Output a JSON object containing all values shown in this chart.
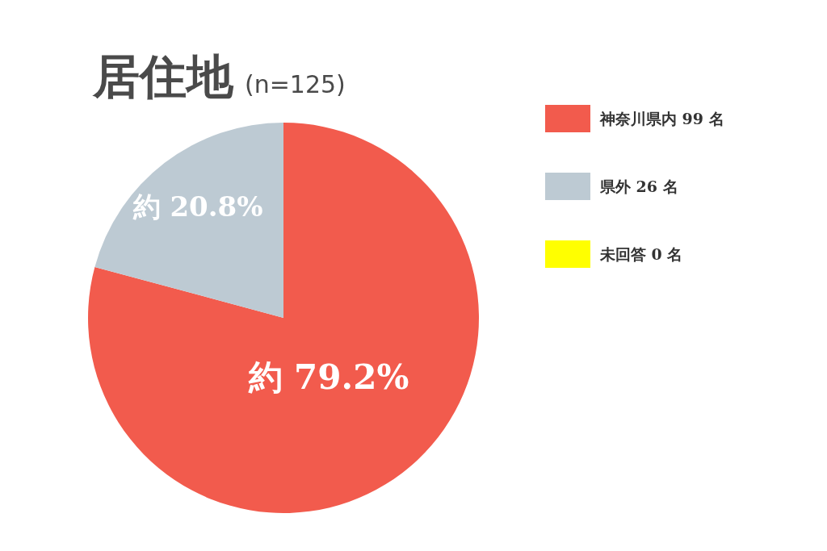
{
  "chart_data": {
    "type": "pie",
    "title": "居住地",
    "subtitle": "(n=125)",
    "categories": [
      "神奈川県内 99 名",
      "県外 26 名",
      "未回答 0 名"
    ],
    "values": [
      99,
      26,
      0
    ],
    "colors": [
      "#f25b4d",
      "#bdcad3",
      "#ffff00"
    ],
    "value_labels": [
      "約 79.2%",
      "約 20.8%",
      null
    ],
    "legend": "right"
  }
}
